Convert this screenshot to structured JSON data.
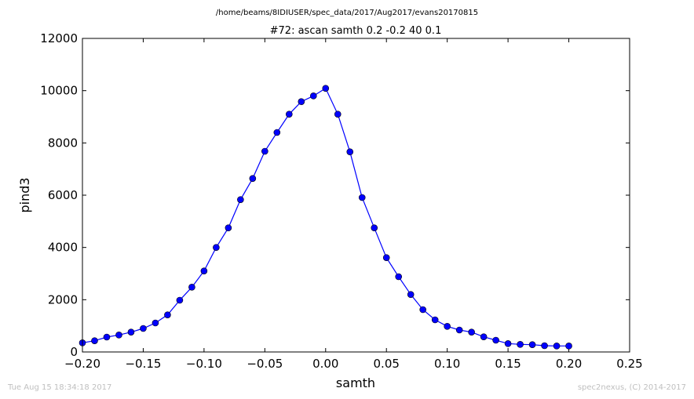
{
  "suptitle": "/home/beams/8IDIUSER/spec_data/2017/Aug2017/evans20170815",
  "footer": {
    "timestamp": "Tue Aug 15 18:34:18 2017",
    "credit": "spec2nexus, (C) 2014-2017"
  },
  "chart_data": {
    "type": "line",
    "title": "#72: ascan  samth 0.2 -0.2  40 0.1",
    "xlabel": "samth",
    "ylabel": "pind3",
    "xlim": [
      -0.2,
      0.25
    ],
    "ylim": [
      0,
      12000
    ],
    "xticks": [
      -0.2,
      -0.15,
      -0.1,
      -0.05,
      0.0,
      0.05,
      0.1,
      0.15,
      0.2,
      0.25
    ],
    "xtick_labels": [
      "−0.20",
      "−0.15",
      "−0.10",
      "−0.05",
      "0.00",
      "0.05",
      "0.10",
      "0.15",
      "0.20",
      "0.25"
    ],
    "yticks": [
      0,
      2000,
      4000,
      6000,
      8000,
      10000,
      12000
    ],
    "ytick_labels": [
      "0",
      "2000",
      "4000",
      "6000",
      "8000",
      "10000",
      "12000"
    ],
    "grid": false,
    "line_color": "#0000ff",
    "marker_color": "#0000ff",
    "x": [
      -0.2,
      -0.19,
      -0.18,
      -0.17,
      -0.16,
      -0.15,
      -0.14,
      -0.13,
      -0.12,
      -0.11,
      -0.1,
      -0.09,
      -0.08,
      -0.07,
      -0.06,
      -0.05,
      -0.04,
      -0.03,
      -0.02,
      -0.01,
      0.0,
      0.01,
      0.02,
      0.03,
      0.04,
      0.05,
      0.06,
      0.07,
      0.08,
      0.09,
      0.1,
      0.11,
      0.12,
      0.13,
      0.14,
      0.15,
      0.16,
      0.17,
      0.18,
      0.19,
      0.2
    ],
    "y": [
      350,
      430,
      570,
      650,
      760,
      900,
      1110,
      1420,
      1980,
      2480,
      3100,
      4000,
      4750,
      5830,
      6640,
      7680,
      8400,
      9100,
      9580,
      9800,
      10090,
      9100,
      7660,
      5910,
      4750,
      3610,
      2880,
      2200,
      1620,
      1230,
      980,
      840,
      760,
      580,
      450,
      320,
      290,
      280,
      240,
      230,
      230
    ]
  }
}
